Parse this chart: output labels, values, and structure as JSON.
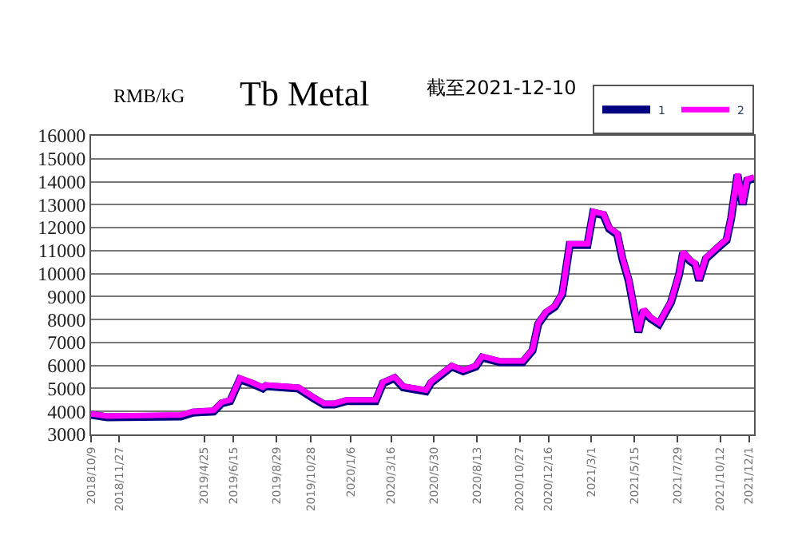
{
  "chart_data": {
    "type": "line",
    "title": "Tb Metal",
    "subtitle": "截至2021-12-10",
    "ylabel": "RMB/kG",
    "x": [
      "2018-10-09",
      "2018-11-06",
      "2019-03-15",
      "2019-04-05",
      "2019-05-11",
      "2019-05-25",
      "2019-06-09",
      "2019-06-26",
      "2019-07-18",
      "2019-08-05",
      "2019-08-10",
      "2019-10-06",
      "2019-11-03",
      "2019-11-20",
      "2019-12-08",
      "2019-12-29",
      "2020-02-18",
      "2020-03-02",
      "2020-03-22",
      "2020-04-06",
      "2020-05-16",
      "2020-05-25",
      "2020-06-30",
      "2020-07-20",
      "2020-08-11",
      "2020-08-22",
      "2020-09-22",
      "2020-11-01",
      "2020-11-18",
      "2020-11-28",
      "2020-12-12",
      "2020-12-27",
      "2021-01-09",
      "2021-01-22",
      "2021-02-22",
      "2021-03-04",
      "2021-03-22",
      "2021-04-01",
      "2021-04-15",
      "2021-04-24",
      "2021-05-05",
      "2021-05-22",
      "2021-05-31",
      "2021-06-12",
      "2021-06-27",
      "2021-07-18",
      "2021-08-01",
      "2021-08-08",
      "2021-08-20",
      "2021-08-29",
      "2021-09-05",
      "2021-09-17",
      "2021-10-09",
      "2021-10-23",
      "2021-10-31",
      "2021-11-11",
      "2021-11-20",
      "2021-11-28",
      "2021-12-10"
    ],
    "series": [
      {
        "name": "1",
        "color": "#000080",
        "values": [
          3850,
          3750,
          3780,
          3950,
          4000,
          4350,
          4450,
          5400,
          5200,
          5000,
          5100,
          5000,
          4550,
          4300,
          4300,
          4450,
          4450,
          5230,
          5450,
          5050,
          4880,
          5250,
          5950,
          5750,
          5950,
          6350,
          6150,
          6150,
          6650,
          7800,
          8300,
          8550,
          9100,
          11250,
          11250,
          12650,
          12550,
          11950,
          11700,
          10650,
          9700,
          7450,
          8400,
          8050,
          7800,
          8750,
          9950,
          10900,
          10550,
          10400,
          9700,
          10650,
          11150,
          11450,
          12400,
          14300,
          13000,
          14050,
          14150
        ]
      },
      {
        "name": "2",
        "color": "#ff00ff",
        "values": [
          3900,
          3800,
          3850,
          4000,
          4050,
          4400,
          4500,
          5450,
          5250,
          5050,
          5150,
          5050,
          4600,
          4350,
          4350,
          4500,
          4500,
          5280,
          5500,
          5100,
          4930,
          5300,
          6000,
          5800,
          6000,
          6400,
          6200,
          6200,
          6700,
          7850,
          8350,
          8600,
          9150,
          11300,
          11300,
          12700,
          12600,
          12000,
          11750,
          10700,
          9750,
          7500,
          8450,
          8100,
          7850,
          8800,
          10000,
          10950,
          10600,
          10450,
          9750,
          10700,
          11200,
          11500,
          12450,
          14350,
          13050,
          14100,
          14200
        ]
      }
    ],
    "xlim": [
      "2018-10-09",
      "2021-12-10"
    ],
    "xticks": [
      {
        "value": "2018-10-09",
        "label": "2018/10/9"
      },
      {
        "value": "2018-11-27",
        "label": "2018/11/27"
      },
      {
        "value": "2019-04-25",
        "label": "2019/4/25"
      },
      {
        "value": "2019-06-15",
        "label": "2019/6/15"
      },
      {
        "value": "2019-08-29",
        "label": "2019/8/29"
      },
      {
        "value": "2019-10-28",
        "label": "2019/10/28"
      },
      {
        "value": "2020-01-06",
        "label": "2020/1/6"
      },
      {
        "value": "2020-03-16",
        "label": "2020/3/16"
      },
      {
        "value": "2020-05-30",
        "label": "2020/5/30"
      },
      {
        "value": "2020-08-13",
        "label": "2020/8/13"
      },
      {
        "value": "2020-10-27",
        "label": "2020/10/27"
      },
      {
        "value": "2020-12-16",
        "label": "2020/12/16"
      },
      {
        "value": "2021-03-01",
        "label": "2021/3/1"
      },
      {
        "value": "2021-05-15",
        "label": "2021/5/15"
      },
      {
        "value": "2021-07-29",
        "label": "2021/7/29"
      },
      {
        "value": "2021-10-12",
        "label": "2021/10/12"
      },
      {
        "value": "2021-12-01",
        "label": "2021/12/1"
      }
    ],
    "ylim": [
      3000,
      16000
    ],
    "yticks": [
      3000,
      4000,
      5000,
      6000,
      7000,
      8000,
      9000,
      10000,
      11000,
      12000,
      13000,
      14000,
      15000,
      16000
    ],
    "grid": "y",
    "legend": "top right",
    "marker": "none",
    "line_style": "solid"
  }
}
